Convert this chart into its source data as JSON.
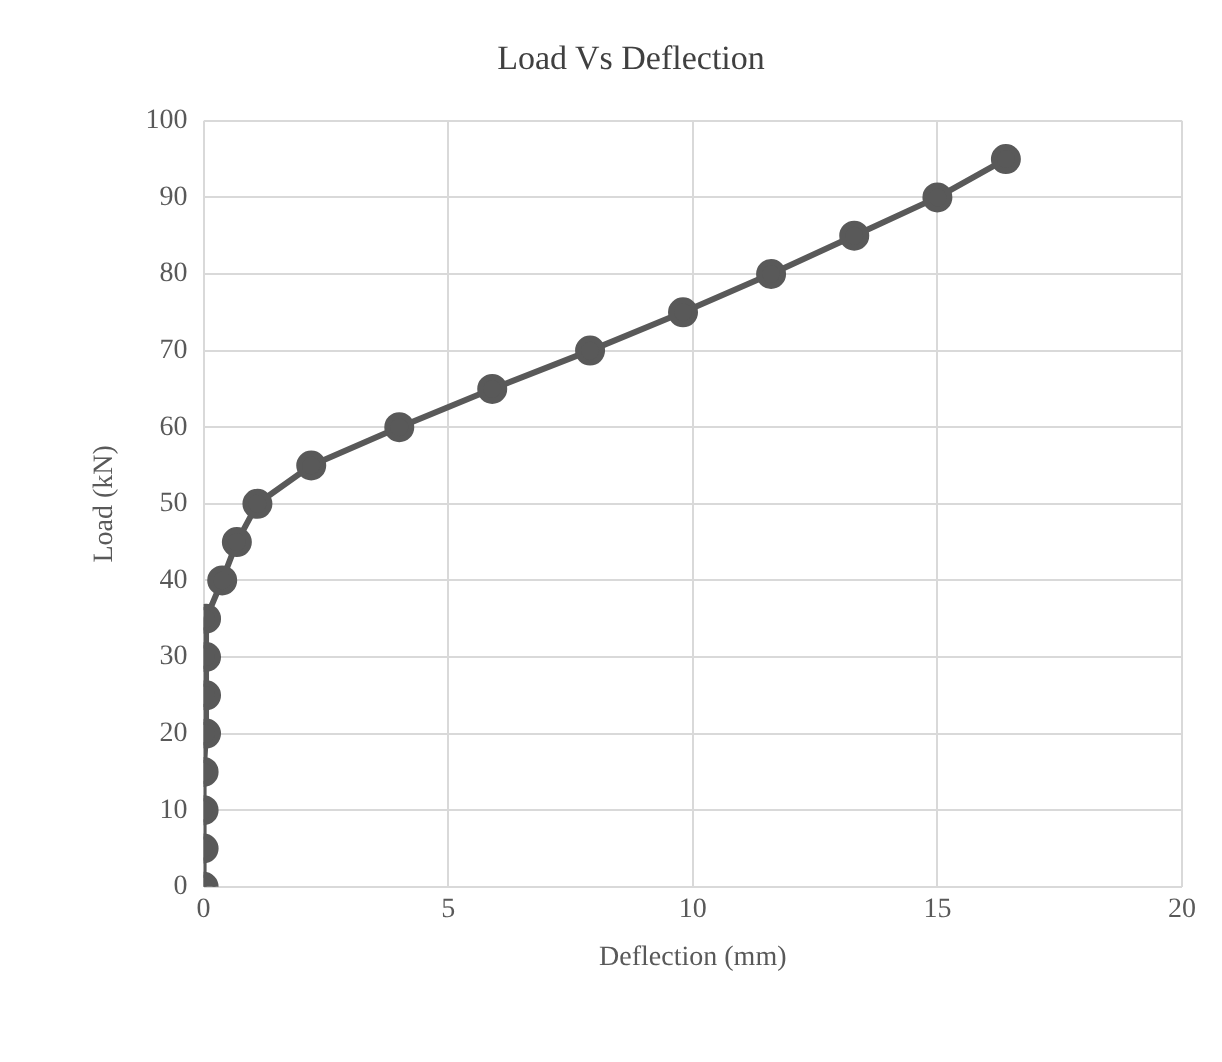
{
  "chart_data": {
    "type": "line",
    "title": "Load Vs Deflection",
    "xlabel": "Deflection (mm)",
    "ylabel": "Load (kN)",
    "x": [
      0,
      0,
      0,
      0,
      0.05,
      0.05,
      0.05,
      0.05,
      0.38,
      0.68,
      1.1,
      2.2,
      4.0,
      5.9,
      7.9,
      9.8,
      11.6,
      13.3,
      15.0,
      16.4
    ],
    "series": [
      {
        "color": "#595959",
        "values": [
          0,
          5,
          10,
          15,
          20,
          25,
          30,
          35,
          40,
          45,
          50,
          55,
          60,
          65,
          70,
          75,
          80,
          85,
          90,
          95
        ]
      }
    ],
    "xlim": [
      0,
      20
    ],
    "xticks": [
      0,
      5,
      10,
      15,
      20
    ],
    "ylim": [
      0,
      100
    ],
    "yticks": [
      0,
      10,
      20,
      30,
      40,
      50,
      60,
      70,
      80,
      90,
      100
    ],
    "grid": true,
    "legend": false,
    "marker": "circle",
    "line_style": "solid"
  }
}
